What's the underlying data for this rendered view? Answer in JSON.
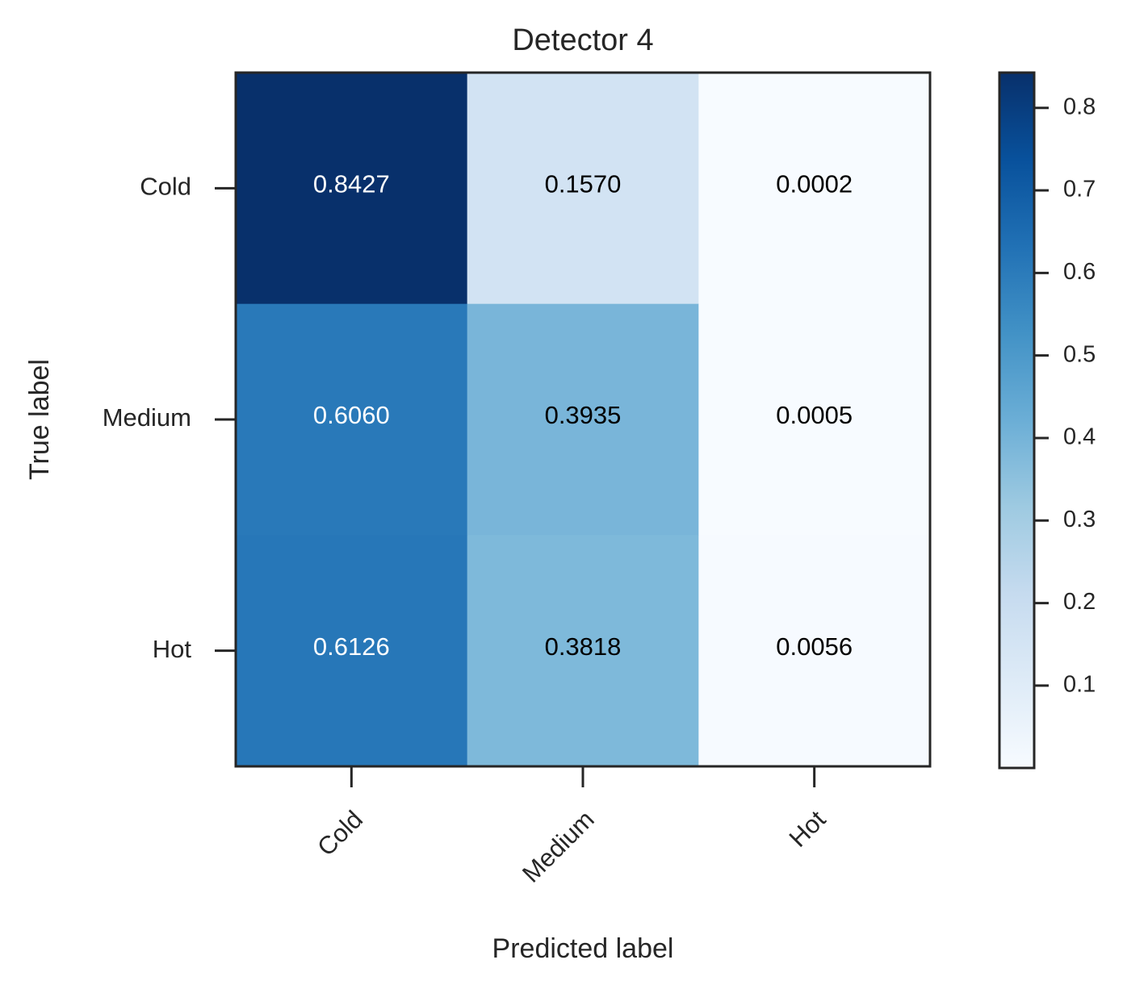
{
  "chart_data": {
    "type": "heatmap",
    "title": "Detector 4",
    "xlabel": "Predicted label",
    "ylabel": "True label",
    "x_categories": [
      "Cold",
      "Medium",
      "Hot"
    ],
    "y_categories": [
      "Cold",
      "Medium",
      "Hot"
    ],
    "values": [
      [
        0.8427,
        0.157,
        0.0002
      ],
      [
        0.606,
        0.3935,
        0.0005
      ],
      [
        0.6126,
        0.3818,
        0.0056
      ]
    ],
    "value_labels": [
      [
        "0.8427",
        "0.1570",
        "0.0002"
      ],
      [
        "0.6060",
        "0.3935",
        "0.0005"
      ],
      [
        "0.6126",
        "0.3818",
        "0.0056"
      ]
    ],
    "colormap": "Blues",
    "colorbar": {
      "range": [
        0.0002,
        0.8427
      ],
      "ticks": [
        0.1,
        0.2,
        0.3,
        0.4,
        0.5,
        0.6,
        0.7,
        0.8
      ],
      "tick_labels": [
        "0.1",
        "0.2",
        "0.3",
        "0.4",
        "0.5",
        "0.6",
        "0.7",
        "0.8"
      ]
    },
    "x_tick_rotation_deg": 45,
    "grid": false,
    "colors": {
      "text_dark": "#000000",
      "text_light": "#ffffff",
      "frame": "#262626"
    }
  }
}
